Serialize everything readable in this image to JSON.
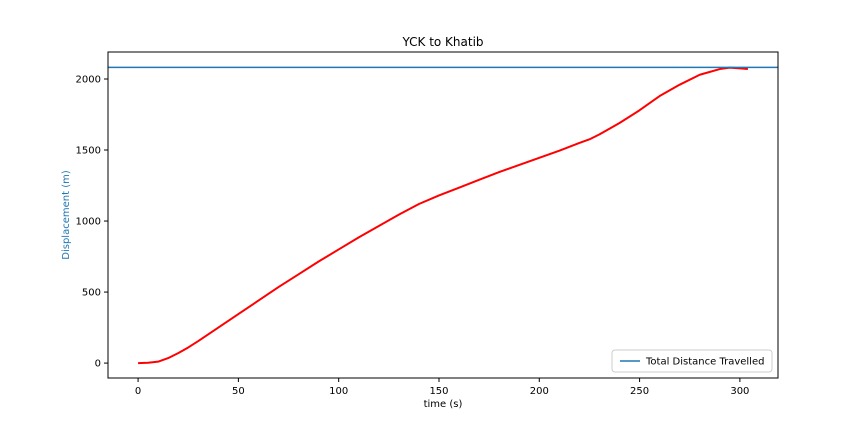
{
  "chart_data": {
    "type": "line",
    "title": "YCK to Khatib",
    "xlabel": "time (s)",
    "ylabel": "Displacement (m)",
    "xlim": [
      -15,
      319
    ],
    "ylim": [
      -105,
      2190
    ],
    "xticks": [
      0,
      50,
      100,
      150,
      200,
      250,
      300
    ],
    "yticks": [
      0,
      500,
      1000,
      1500,
      2000
    ],
    "grid": false,
    "legend_position": "lower right",
    "series": [
      {
        "color": "#ff0000",
        "x": [
          0,
          5,
          10,
          15,
          20,
          25,
          30,
          40,
          50,
          60,
          70,
          80,
          90,
          100,
          110,
          120,
          130,
          140,
          150,
          160,
          170,
          180,
          190,
          200,
          210,
          220,
          225,
          230,
          240,
          250,
          260,
          270,
          280,
          290,
          295,
          300,
          304
        ],
        "y": [
          0,
          2,
          10,
          35,
          70,
          110,
          155,
          250,
          345,
          440,
          535,
          625,
          715,
          800,
          885,
          965,
          1045,
          1120,
          1180,
          1235,
          1290,
          1345,
          1395,
          1445,
          1495,
          1550,
          1575,
          1610,
          1690,
          1780,
          1880,
          1960,
          2030,
          2070,
          2080,
          2075,
          2070
        ]
      },
      {
        "name": "Total Distance Travelled",
        "color": "#1f77b4",
        "style": "horizontal-line",
        "y": 2082
      }
    ]
  }
}
